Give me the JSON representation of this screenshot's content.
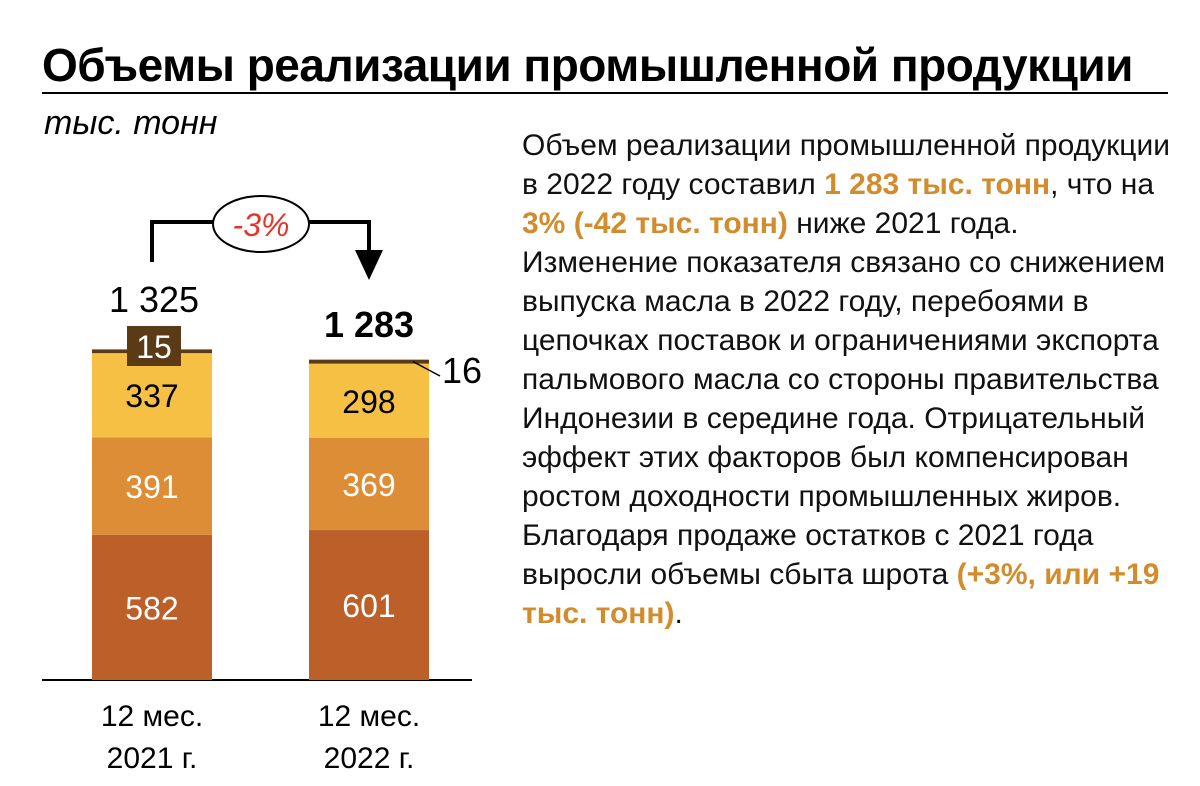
{
  "header": {
    "title": "Объемы реализации промышленной продукции",
    "unit": "тыс. тонн"
  },
  "chart_data": {
    "type": "bar",
    "stacked": true,
    "categories": [
      "12 мес. 2021 г.",
      "12 мес. 2022 г."
    ],
    "category_lines": [
      [
        "12 мес.",
        "2021 г."
      ],
      [
        "12 мес.",
        "2022 г."
      ]
    ],
    "totals": [
      "1 325",
      "1 283"
    ],
    "total_values": [
      1325,
      1283
    ],
    "series": [
      {
        "values": [
          582,
          601
        ],
        "color": "#bd5f29"
      },
      {
        "values": [
          391,
          369
        ],
        "color": "#dc8d35"
      },
      {
        "values": [
          337,
          298
        ],
        "color": "#f6c045"
      },
      {
        "values": [
          15,
          16
        ],
        "color": "#5a3b16"
      }
    ],
    "change_label": "-3%",
    "change_color": "#e8332a",
    "ylabel": "тыс. тонн"
  },
  "text": {
    "p1": "Объем реализации промышленной продукции в 2022 году составил ",
    "h1": "1 283 тыс. тонн",
    "p2": ", что на ",
    "h2": "3% (-42 тыс. тонн)",
    "p3": " ниже 2021 года. Изменение показателя связано со снижением выпуска масла в 2022 году, перебоями в цепочках поставок и ограничениями экспорта пальмового масла со стороны правительства Индонезии в середине года. Отрицательный эффект этих факторов был компенсирован ростом доходности промышленных жиров. Благодаря продаже остатков с 2021 года выросли объемы сбыта шрота ",
    "h3": "(+3%, или +19 тыс. тонн)",
    "p4": "."
  }
}
